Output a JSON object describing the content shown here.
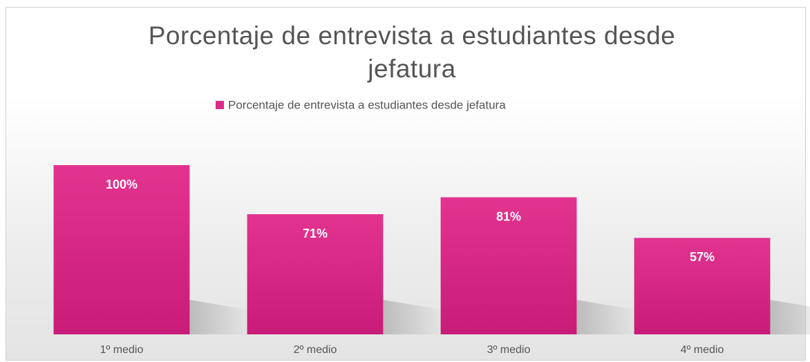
{
  "chart_data": {
    "type": "bar",
    "title": "Porcentaje de entrevista a estudiantes desde jefatura",
    "categories": [
      "1º medio",
      "2º medio",
      "3º medio",
      "4º medio"
    ],
    "series": [
      {
        "name": "Porcentaje de entrevista a estudiantes desde jefatura",
        "color": "#dc2a8a",
        "values": [
          100,
          71,
          81,
          57
        ],
        "value_labels": [
          "100%",
          "71%",
          "81%",
          "57%"
        ]
      }
    ],
    "ylim": [
      0,
      100
    ],
    "legend": "top"
  }
}
